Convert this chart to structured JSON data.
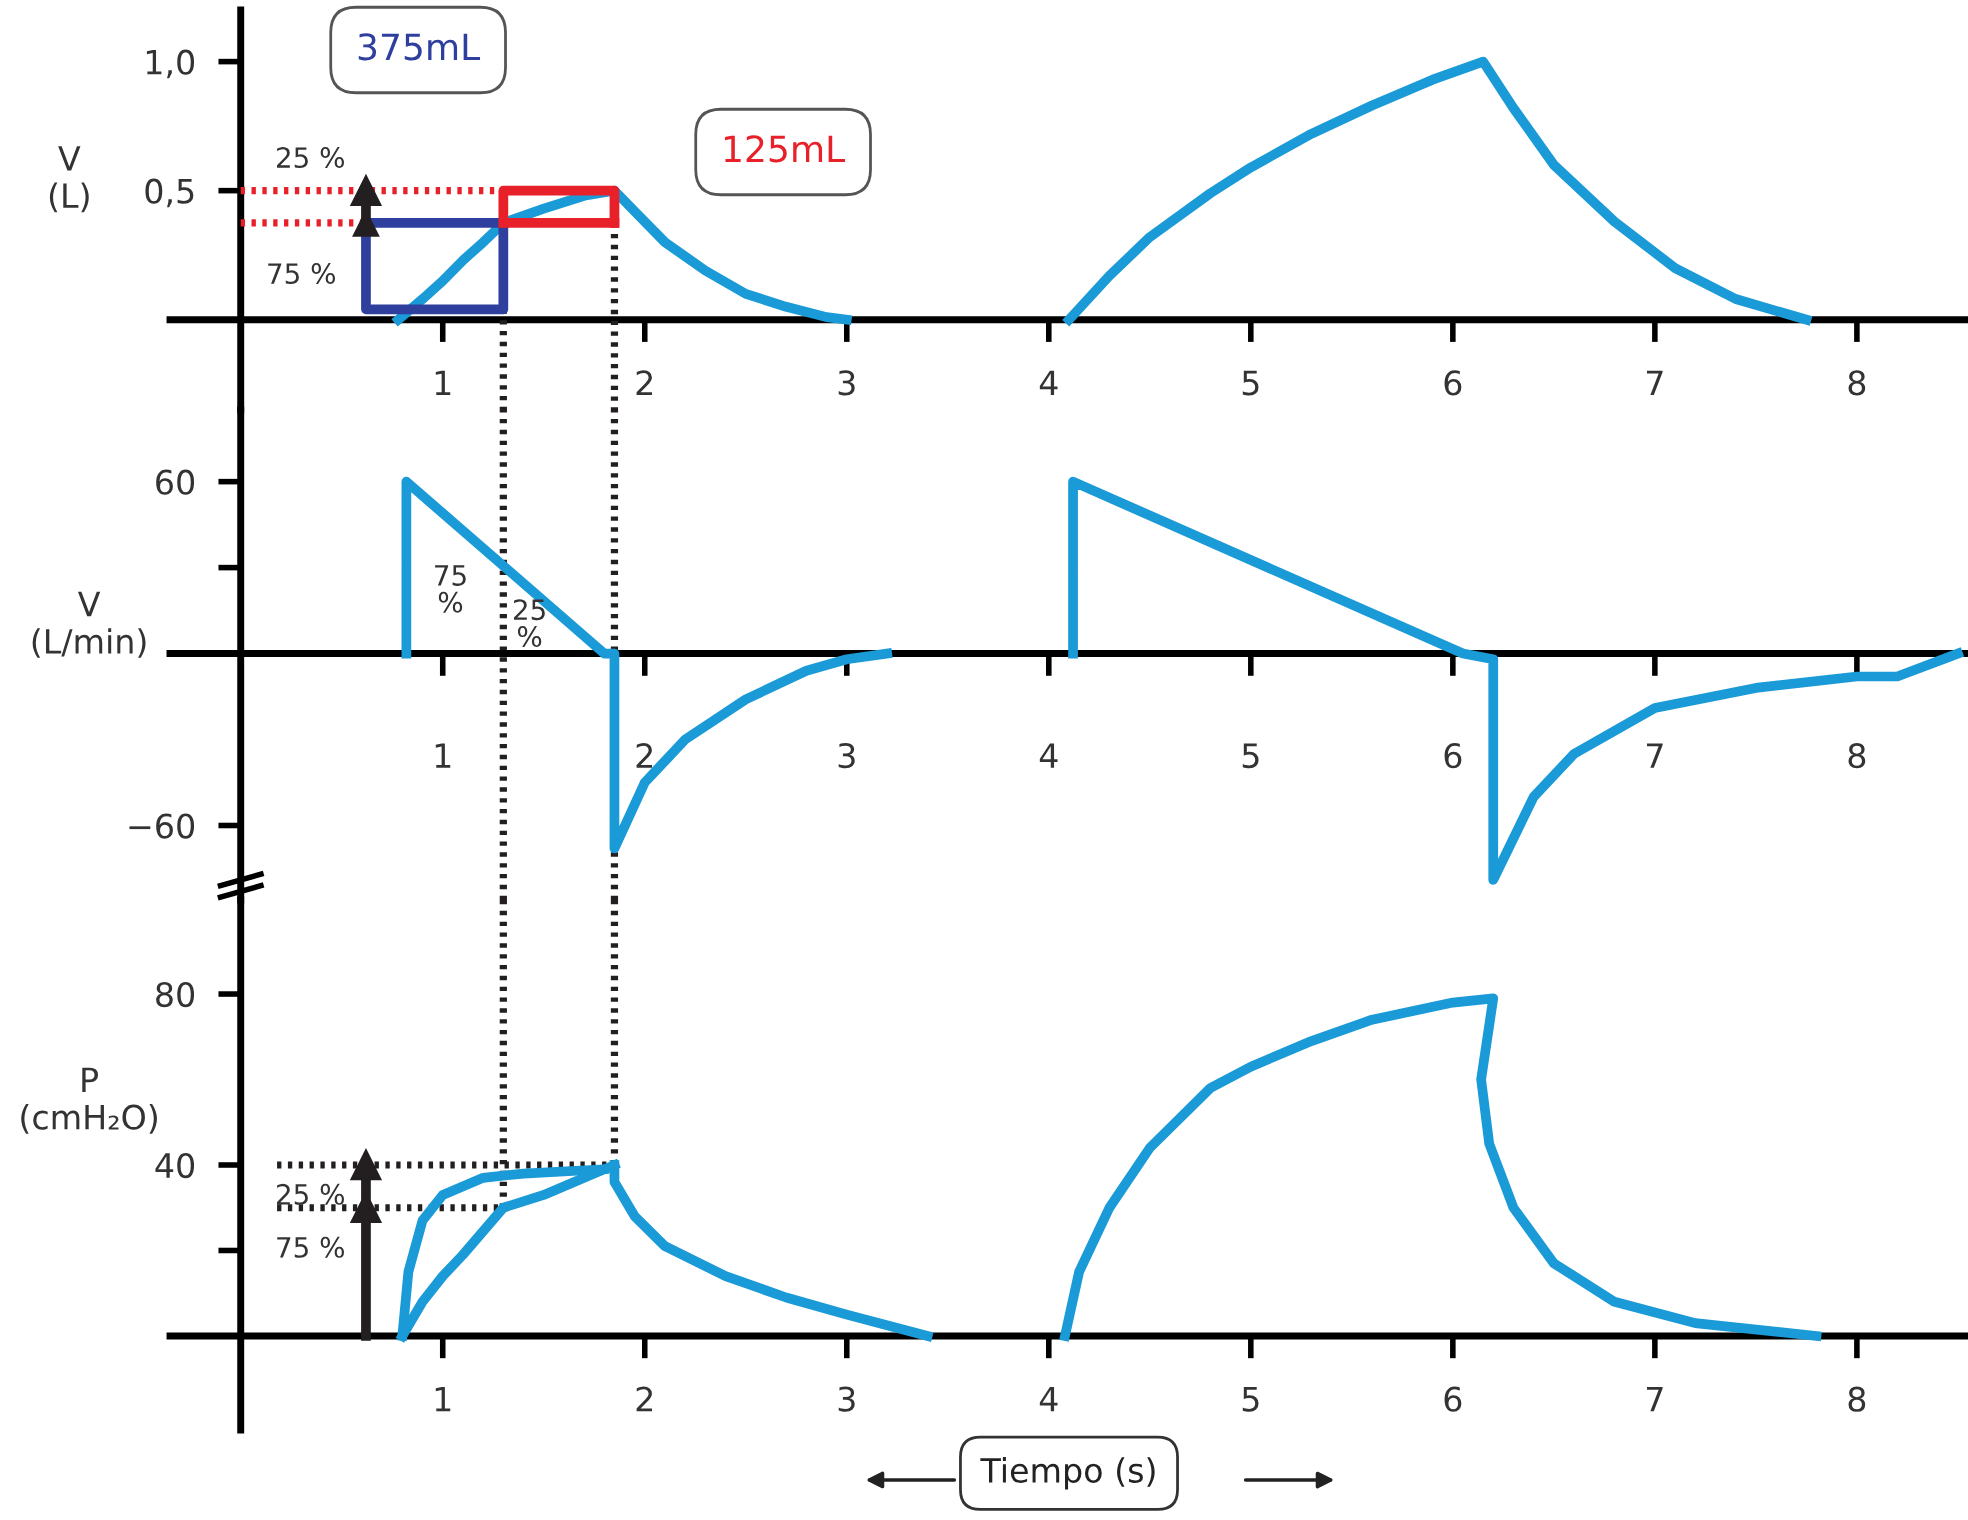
{
  "chart_data": [
    {
      "type": "line",
      "ylabel": "V\n(L)",
      "xlim": [
        -0.35,
        8.55
      ],
      "ylim": [
        -0.35,
        1.2
      ],
      "xticks": [
        1,
        2,
        3,
        4,
        5,
        6,
        7,
        8
      ],
      "yticks": [
        {
          "value": 0.5,
          "label": "0,5"
        },
        {
          "value": 1.0,
          "label": "1,0"
        }
      ],
      "series": [
        {
          "x": [
            0,
            1.3
          ],
          "values": [
            0.375,
            0.375
          ],
          "color": "#e8202a",
          "line_style": "dotted"
        },
        {
          "x": [
            0,
            1.85
          ],
          "values": [
            0.5,
            0.5
          ],
          "color": "#e8202a",
          "line_style": "dotted"
        },
        {
          "x": [
            1.3,
            1.3
          ],
          "values": [
            0.04,
            -0.35
          ],
          "color": "#231f20",
          "line_style": "dotted"
        },
        {
          "x": [
            1.85,
            1.85
          ],
          "values": [
            0.5,
            -0.35
          ],
          "color": "#231f20",
          "line_style": "dotted"
        },
        {
          "x": [
            0.78,
            0.9,
            1.0,
            1.1,
            1.2,
            1.3,
            1.5,
            1.7,
            1.85,
            1.95,
            2.1,
            2.3,
            2.5,
            2.7,
            2.9,
            3.0
          ],
          "values": [
            0,
            0.08,
            0.15,
            0.23,
            0.3,
            0.375,
            0.43,
            0.48,
            0.5,
            0.42,
            0.3,
            0.19,
            0.1,
            0.05,
            0.01,
            0
          ],
          "color": "#1a9ad6",
          "line_style": "solid"
        },
        {
          "x": [
            4.1,
            4.3,
            4.5,
            4.8,
            5.0,
            5.3,
            5.6,
            5.9,
            6.15,
            6.3,
            6.5,
            6.8,
            7.1,
            7.4,
            7.75
          ],
          "values": [
            0,
            0.17,
            0.32,
            0.49,
            0.59,
            0.72,
            0.83,
            0.93,
            1.0,
            0.82,
            0.6,
            0.38,
            0.2,
            0.08,
            0
          ],
          "color": "#1a9ad6",
          "line_style": "solid"
        },
        {
          "x": [
            0.62,
            0.62,
            1.3,
            1.3
          ],
          "values": [
            0.375,
            0.04,
            0.04,
            0.375
          ],
          "color": "#2e3f9e",
          "line_style": "solid"
        },
        {
          "x": [
            1.3,
            1.3,
            1.85,
            1.85
          ],
          "values": [
            0.375,
            0.5,
            0.5,
            0.375
          ],
          "color": "#e8202a",
          "line_style": "solid"
        },
        {
          "x": [
            0.62,
            1.3
          ],
          "values": [
            0.375,
            0.375
          ],
          "color": "#2e3f9e",
          "line_style": "solid"
        },
        {
          "x": [
            1.3,
            1.85
          ],
          "values": [
            0.375,
            0.375
          ],
          "color": "#e8202a",
          "line_style": "solid"
        },
        {
          "type": "scatter",
          "x": [
            0.62
          ],
          "values": [
            0.375
          ],
          "color": "#231f20",
          "marker": "triangle"
        },
        {
          "x": [
            0.62,
            0.62
          ],
          "values": [
            0.375,
            0.5
          ],
          "color": "#231f20",
          "line_style": "solid",
          "marker": "triangle"
        }
      ],
      "annotations": [
        "375mL",
        "125mL",
        "25 %",
        "75 %"
      ]
    },
    {
      "type": "line",
      "ylabel": "V\n(L/min)",
      "xlim": [
        -0.35,
        8.55
      ],
      "ylim": [
        -86,
        85
      ],
      "xticks": [
        1,
        2,
        3,
        4,
        5,
        6,
        7,
        8
      ],
      "yticks": [
        {
          "value": -60,
          "label": "−60"
        },
        {
          "value": 30,
          "label": null
        },
        60
      ],
      "ref_lines": [
        {
          "axis": "x",
          "value": 1.3,
          "color": "#231f20",
          "line_style": "dotted"
        },
        {
          "axis": "x",
          "value": 1.85,
          "color": "#231f20",
          "line_style": "dotted"
        }
      ],
      "series": [
        {
          "x": [
            0.82,
            0.82,
            1.8,
            1.85,
            1.85,
            2.0,
            2.2,
            2.5,
            2.8,
            3.0,
            3.2
          ],
          "values": [
            0,
            60,
            0,
            0,
            -68,
            -45,
            -30,
            -16,
            -6,
            -2,
            0
          ],
          "color": "#1a9ad6",
          "line_style": "solid"
        },
        {
          "x": [
            4.12,
            4.12,
            6.05,
            6.2,
            6.2,
            6.4,
            6.6,
            7.0,
            7.5,
            8.0,
            8.2,
            8.5
          ],
          "values": [
            0,
            60,
            0,
            -2,
            -79,
            -50,
            -35,
            -19,
            -12,
            -8,
            -8,
            0
          ],
          "color": "#1a9ad6",
          "line_style": "solid"
        }
      ],
      "annotations": [
        "75\n%",
        "25\n%"
      ]
    },
    {
      "type": "line",
      "ylabel": "P\n(cmH₂O)",
      "xlabel": "Tiempo (s)",
      "xlim": [
        -0.35,
        8.55
      ],
      "ylim": [
        -22,
        102
      ],
      "xticks": [
        1,
        2,
        3,
        4,
        5,
        6,
        7,
        8
      ],
      "yticks": [
        {
          "value": 20,
          "label": null
        },
        40,
        80
      ],
      "series": [
        {
          "x": [
            0.18,
            1.3
          ],
          "values": [
            30,
            30
          ],
          "color": "#231f20",
          "line_style": "dotted"
        },
        {
          "x": [
            0.18,
            1.85
          ],
          "values": [
            40,
            40
          ],
          "color": "#231f20",
          "line_style": "dotted"
        },
        {
          "x": [
            1.3,
            1.3
          ],
          "values": [
            102,
            30
          ],
          "color": "#231f20",
          "line_style": "dotted"
        },
        {
          "x": [
            1.85,
            1.85
          ],
          "values": [
            102,
            40
          ],
          "color": "#231f20",
          "line_style": "dotted"
        },
        {
          "x": [
            0.8,
            0.83,
            0.9,
            1.0,
            1.2,
            1.4,
            1.8
          ],
          "values": [
            0,
            15,
            27,
            33,
            37,
            38,
            39
          ],
          "color": "#1a9ad6",
          "line_style": "solid"
        },
        {
          "x": [
            0.8,
            0.9,
            1.0,
            1.1,
            1.3,
            1.5,
            1.7,
            1.85
          ],
          "values": [
            0,
            8,
            14,
            19,
            30,
            33,
            37,
            40
          ],
          "color": "#1a9ad6",
          "line_style": "solid"
        },
        {
          "x": [
            1.85,
            1.85,
            1.95,
            2.1,
            2.4,
            2.7,
            3.0,
            3.4
          ],
          "values": [
            40,
            36,
            28,
            21,
            14,
            9,
            5,
            0
          ],
          "color": "#1a9ad6",
          "line_style": "solid"
        },
        {
          "x": [
            4.08,
            4.15,
            4.3,
            4.5,
            4.8,
            5.0,
            5.3,
            5.6,
            6.0,
            6.2,
            6.14,
            6.18,
            6.3,
            6.5,
            6.8,
            7.2,
            7.8
          ],
          "values": [
            0,
            15,
            30,
            44,
            58,
            63,
            69,
            74,
            78,
            79,
            60,
            45,
            30,
            17,
            8,
            3,
            0
          ],
          "color": "#1a9ad6",
          "line_style": "solid"
        },
        {
          "x": [
            0.62,
            0.62
          ],
          "values": [
            0,
            30
          ],
          "color": "#231f20",
          "line_style": "solid",
          "marker": "triangle"
        },
        {
          "x": [
            0.62,
            0.62
          ],
          "values": [
            30,
            40
          ],
          "color": "#231f20",
          "line_style": "solid",
          "marker": "triangle"
        }
      ],
      "annotations": [
        "25 %",
        "75 %"
      ]
    }
  ]
}
